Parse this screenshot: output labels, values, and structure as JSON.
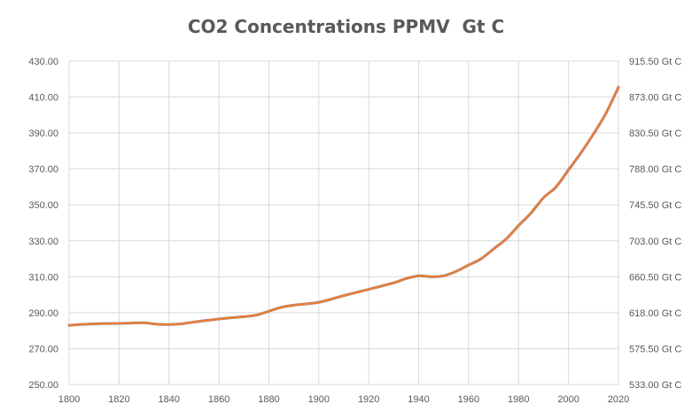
{
  "chart_data": {
    "type": "line",
    "title": "CO2 Concentrations PPMV  Gt C",
    "xlabel": "",
    "ylabel": "",
    "xlim": [
      1800,
      2020
    ],
    "ylim": [
      250,
      430
    ],
    "y2lim": [
      533.0,
      915.5
    ],
    "x_ticks": [
      "1800",
      "1820",
      "1840",
      "1860",
      "1880",
      "1900",
      "1920",
      "1940",
      "1960",
      "1980",
      "2000",
      "2020"
    ],
    "y_ticks": [
      "250.00",
      "270.00",
      "290.00",
      "310.00",
      "330.00",
      "350.00",
      "370.00",
      "390.00",
      "410.00",
      "430.00"
    ],
    "y2_ticks": [
      "533.00 Gt C",
      "575.50 Gt C",
      "618.00 Gt C",
      "660.50 Gt C",
      "703.00 Gt C",
      "745.50 Gt C",
      "788.00 Gt C",
      "830.50 Gt C",
      "873.00 Gt C",
      "915.50 Gt C"
    ],
    "grid": true,
    "colors": {
      "ppmv": "#5b7fc0",
      "gtc": "#ed7d31",
      "grid": "#d9d9d9"
    },
    "series": [
      {
        "values": [
          [
            1800,
            283.0
          ],
          [
            1810,
            283.8
          ],
          [
            1820,
            284.0
          ],
          [
            1825,
            284.2
          ],
          [
            1830,
            284.4
          ],
          [
            1835,
            283.6
          ],
          [
            1840,
            283.4
          ],
          [
            1845,
            283.8
          ],
          [
            1850,
            284.8
          ],
          [
            1860,
            286.5
          ],
          [
            1870,
            287.8
          ],
          [
            1875,
            288.7
          ],
          [
            1880,
            290.8
          ],
          [
            1885,
            293.0
          ],
          [
            1890,
            294.2
          ],
          [
            1900,
            295.8
          ],
          [
            1910,
            299.5
          ],
          [
            1920,
            303.0
          ],
          [
            1930,
            306.6
          ],
          [
            1935,
            309.0
          ],
          [
            1940,
            310.5
          ],
          [
            1945,
            310.0
          ],
          [
            1950,
            310.5
          ],
          [
            1955,
            313.0
          ],
          [
            1960,
            316.5
          ],
          [
            1965,
            320.0
          ],
          [
            1970,
            325.5
          ],
          [
            1975,
            331.0
          ],
          [
            1980,
            338.5
          ],
          [
            1985,
            345.5
          ],
          [
            1990,
            354.0
          ],
          [
            1995,
            360.0
          ],
          [
            2000,
            369.5
          ],
          [
            2005,
            379.0
          ],
          [
            2010,
            389.5
          ],
          [
            2015,
            401.0
          ],
          [
            2020,
            415.5
          ]
        ]
      },
      {
        "values": [
          [
            1800,
            283.0
          ],
          [
            1810,
            283.8
          ],
          [
            1820,
            284.0
          ],
          [
            1825,
            284.2
          ],
          [
            1830,
            284.4
          ],
          [
            1835,
            283.6
          ],
          [
            1840,
            283.4
          ],
          [
            1845,
            283.8
          ],
          [
            1850,
            284.8
          ],
          [
            1860,
            286.5
          ],
          [
            1870,
            287.8
          ],
          [
            1875,
            288.7
          ],
          [
            1880,
            290.8
          ],
          [
            1885,
            293.0
          ],
          [
            1890,
            294.2
          ],
          [
            1900,
            295.8
          ],
          [
            1910,
            299.5
          ],
          [
            1920,
            303.0
          ],
          [
            1930,
            306.6
          ],
          [
            1935,
            309.0
          ],
          [
            1940,
            310.5
          ],
          [
            1945,
            310.0
          ],
          [
            1950,
            310.5
          ],
          [
            1955,
            313.0
          ],
          [
            1960,
            316.5
          ],
          [
            1965,
            320.0
          ],
          [
            1970,
            325.5
          ],
          [
            1975,
            331.0
          ],
          [
            1980,
            338.5
          ],
          [
            1985,
            345.5
          ],
          [
            1990,
            354.0
          ],
          [
            1995,
            360.0
          ],
          [
            2000,
            369.5
          ],
          [
            2005,
            379.0
          ],
          [
            2010,
            389.5
          ],
          [
            2015,
            401.0
          ],
          [
            2020,
            415.5
          ]
        ]
      }
    ]
  }
}
